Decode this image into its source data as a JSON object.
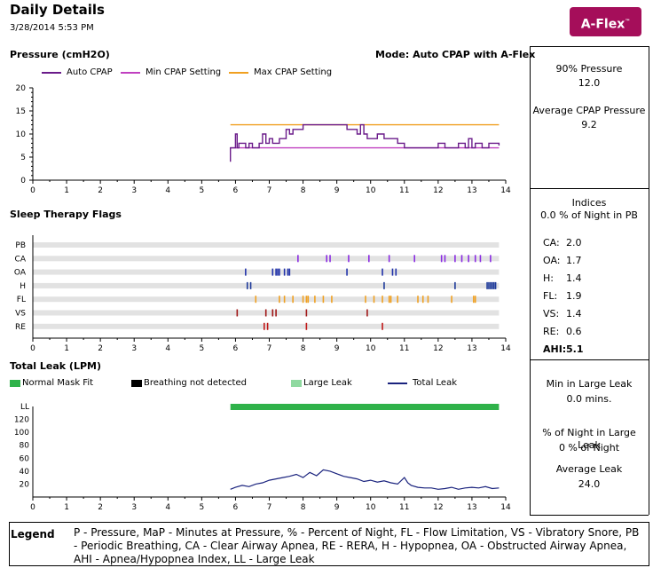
{
  "header": {
    "title": "Daily Details",
    "date": "3/28/2014 5:53 PM",
    "logo_text": "A-Flex",
    "logo_mark": "™",
    "logo_color": "#a50e5a"
  },
  "pressure_panel": {
    "title": "Pressure (cmH2O)",
    "mode": "Mode: Auto CPAP with A-Flex",
    "legend": [
      "Auto CPAP",
      "Min CPAP Setting",
      "Max CPAP Setting"
    ]
  },
  "flags_panel": {
    "title": "Sleep Therapy Flags"
  },
  "leak_panel": {
    "title": "Total Leak (LPM)",
    "legend": [
      "Normal Mask Fit",
      "Breathing not detected",
      "Large Leak",
      "Total Leak"
    ]
  },
  "stats": {
    "p90_label": "90% Pressure",
    "p90_value": "12.0",
    "avg_label": "Average CPAP Pressure",
    "avg_value": "9.2",
    "indices_label": "Indices",
    "pb_line": "0.0 % of Night in PB",
    "indices": [
      {
        "label": "CA:",
        "value": "2.0"
      },
      {
        "label": "OA:",
        "value": "1.7"
      },
      {
        "label": "H:",
        "value": "1.4"
      },
      {
        "label": "FL:",
        "value": "1.9"
      },
      {
        "label": "VS:",
        "value": "1.4"
      },
      {
        "label": "RE:",
        "value": "0.6"
      },
      {
        "label": "AHI:",
        "value": "5.1"
      }
    ],
    "large_leak_label": "Min in Large Leak",
    "large_leak_value": "0.0  mins.",
    "pct_large_leak_label": "% of Night in Large Leak",
    "pct_large_leak_value": "0 % of Night",
    "avg_leak_label": "Average Leak",
    "avg_leak_value": "24.0"
  },
  "legend_footer": {
    "title": "Legend",
    "text": "P - Pressure, MaP - Minutes at Pressure, % - Percent of Night, FL - Flow Limitation, VS - Vibratory Snore, PB - Periodic Breathing, CA - Clear Airway Apnea, RE - RERA, H - Hypopnea, OA - Obstructed Airway Apnea, AHI - Apnea/Hypopnea Index, LL - Large Leak"
  },
  "colors": {
    "auto_cpap": "#6a1b8a",
    "min_cpap": "#c040c0",
    "max_cpap": "#f0a020",
    "normal_mask": "#2fb24a",
    "breathing_nd": "#000000",
    "large_leak": "#8fd9a0",
    "total_leak": "#1a237e",
    "flag_row": "#e2e2e2",
    "CA": "#8a2be2",
    "OA": "#2233aa",
    "H": "#1e3a9a",
    "FL": "#f0a020",
    "VS": "#a01818",
    "RE": "#c01818"
  },
  "chart_data": [
    {
      "type": "line",
      "title": "Pressure (cmH2O)",
      "xlim": [
        0,
        14
      ],
      "ylim": [
        0,
        20
      ],
      "x_ticks": [
        0,
        1,
        2,
        3,
        4,
        5,
        6,
        7,
        8,
        9,
        10,
        11,
        12,
        13,
        14
      ],
      "y_ticks": [
        0,
        5,
        10,
        15,
        20
      ],
      "series": [
        {
          "name": "Auto CPAP",
          "x": [
            5.85,
            5.85,
            5.95,
            6.0,
            6.05,
            6.1,
            6.3,
            6.4,
            6.5,
            6.7,
            6.8,
            6.9,
            7.0,
            7.1,
            7.2,
            7.3,
            7.4,
            7.5,
            7.6,
            7.7,
            7.8,
            8.0,
            8.5,
            9.0,
            9.3,
            9.5,
            9.6,
            9.7,
            9.8,
            9.9,
            10.0,
            10.2,
            10.4,
            10.6,
            10.8,
            11.0,
            11.2,
            11.5,
            11.8,
            12.0,
            12.2,
            12.4,
            12.6,
            12.8,
            12.9,
            13.0,
            13.1,
            13.2,
            13.3,
            13.5,
            13.6,
            13.8
          ],
          "y": [
            4,
            7,
            7,
            10,
            7,
            8,
            7,
            8,
            7,
            8,
            10,
            8,
            9,
            8,
            8,
            9,
            9,
            11,
            10,
            11,
            11,
            12,
            12,
            12,
            11,
            11,
            10,
            12,
            10,
            9,
            9,
            10,
            9,
            9,
            8,
            7,
            7,
            7,
            7,
            8,
            7,
            7,
            8,
            7,
            9,
            7,
            8,
            8,
            7,
            8,
            8,
            7.5
          ]
        },
        {
          "name": "Min CPAP Setting",
          "x": [
            5.85,
            13.8
          ],
          "y": [
            7,
            7
          ]
        },
        {
          "name": "Max CPAP Setting",
          "x": [
            5.85,
            13.8
          ],
          "y": [
            12,
            12
          ]
        }
      ]
    },
    {
      "type": "scatter",
      "title": "Sleep Therapy Flags",
      "xlim": [
        0,
        14
      ],
      "x_ticks": [
        0,
        1,
        2,
        3,
        4,
        5,
        6,
        7,
        8,
        9,
        10,
        11,
        12,
        13,
        14
      ],
      "row_extent": [
        5.85,
        13.8
      ],
      "categories": [
        "PB",
        "CA",
        "OA",
        "H",
        "FL",
        "VS",
        "RE"
      ],
      "series": [
        {
          "name": "PB",
          "x": []
        },
        {
          "name": "CA",
          "x": [
            7.85,
            8.7,
            8.8,
            9.35,
            9.95,
            10.55,
            11.3,
            12.1,
            12.2,
            12.5,
            12.7,
            12.9,
            13.1,
            13.25,
            13.55
          ]
        },
        {
          "name": "OA",
          "x": [
            6.3,
            7.1,
            7.2,
            7.25,
            7.3,
            7.45,
            7.55,
            7.6,
            9.3,
            10.35,
            10.65,
            10.75
          ]
        },
        {
          "name": "H",
          "x": [
            6.35,
            6.45,
            10.4,
            12.5,
            13.45,
            13.5,
            13.55,
            13.6,
            13.65,
            13.7
          ]
        },
        {
          "name": "FL",
          "x": [
            6.6,
            7.3,
            7.45,
            7.7,
            8.0,
            8.1,
            8.15,
            8.35,
            8.6,
            8.85,
            9.85,
            10.1,
            10.35,
            10.55,
            10.6,
            10.8,
            11.4,
            11.55,
            11.7,
            12.4,
            13.05,
            13.1
          ]
        },
        {
          "name": "VS",
          "x": [
            6.05,
            6.9,
            7.1,
            7.2,
            8.1,
            9.9
          ]
        },
        {
          "name": "RE",
          "x": [
            6.85,
            6.95,
            8.1,
            10.35
          ]
        }
      ]
    },
    {
      "type": "area",
      "title": "Total Leak (LPM)",
      "xlim": [
        0,
        14
      ],
      "ylim": [
        0,
        140
      ],
      "x_ticks": [
        0,
        1,
        2,
        3,
        4,
        5,
        6,
        7,
        8,
        9,
        10,
        11,
        12,
        13,
        14
      ],
      "y_ticks": [
        20,
        40,
        60,
        80,
        100,
        120
      ],
      "y_top_label": "LL",
      "series": [
        {
          "name": "Normal Mask Fit",
          "x": [
            5.85,
            13.8
          ]
        },
        {
          "name": "Total Leak",
          "x": [
            5.85,
            6.0,
            6.2,
            6.4,
            6.6,
            6.8,
            7.0,
            7.2,
            7.4,
            7.6,
            7.8,
            8.0,
            8.2,
            8.4,
            8.6,
            8.8,
            9.0,
            9.2,
            9.4,
            9.6,
            9.8,
            10.0,
            10.2,
            10.4,
            10.6,
            10.8,
            11.0,
            11.1,
            11.2,
            11.4,
            11.6,
            11.8,
            12.0,
            12.2,
            12.4,
            12.6,
            12.8,
            13.0,
            13.2,
            13.4,
            13.6,
            13.8
          ],
          "y": [
            12,
            15,
            18,
            16,
            20,
            22,
            26,
            28,
            30,
            32,
            35,
            30,
            38,
            33,
            42,
            40,
            36,
            32,
            30,
            28,
            24,
            26,
            23,
            25,
            22,
            20,
            30,
            22,
            18,
            15,
            14,
            14,
            12,
            13,
            15,
            12,
            14,
            15,
            14,
            16,
            13,
            14
          ]
        }
      ]
    }
  ]
}
